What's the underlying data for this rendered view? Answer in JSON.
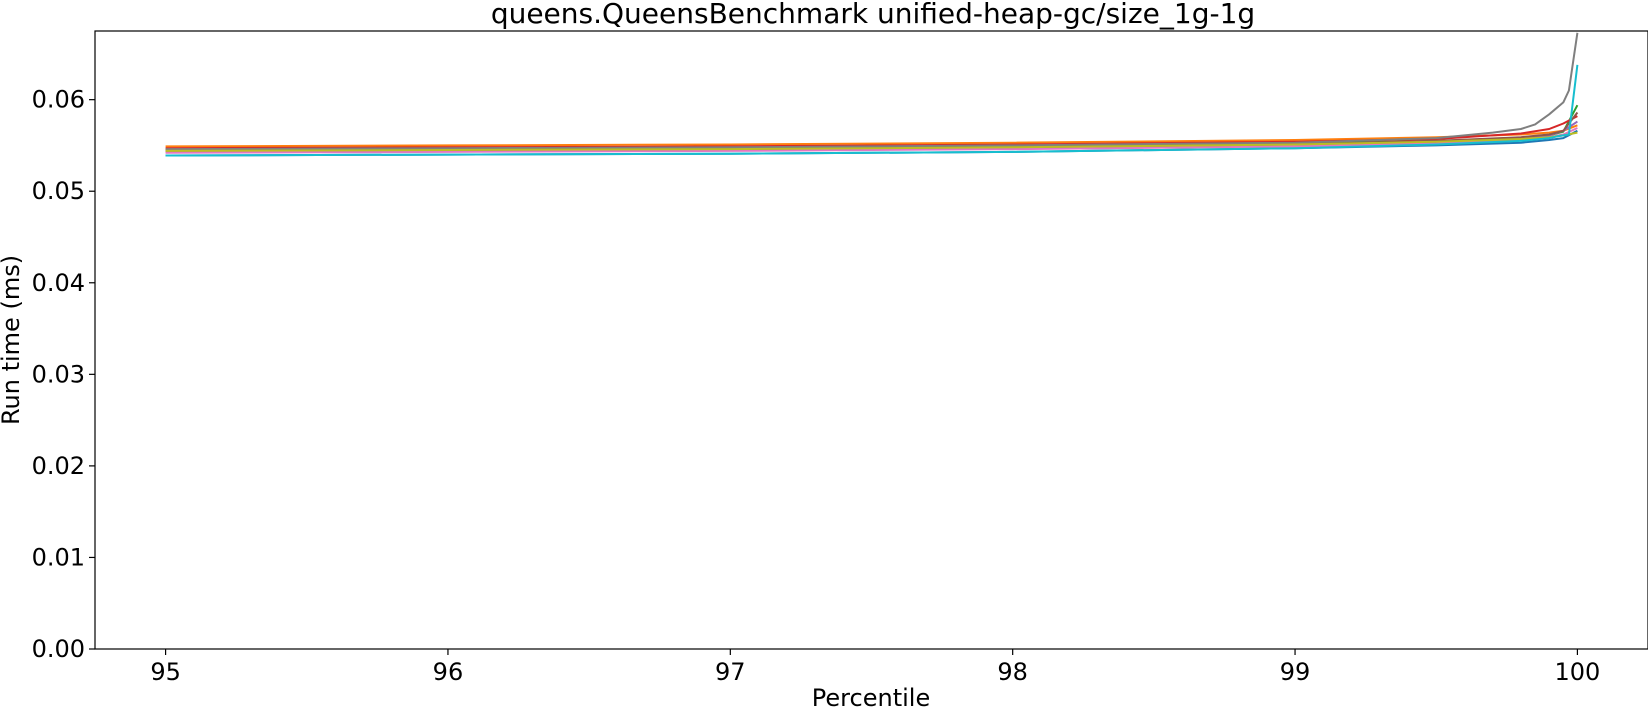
{
  "chart_data": {
    "type": "line",
    "title": "queens.QueensBenchmark unified-heap-gc/size_1g-1g",
    "xlabel": "Percentile",
    "ylabel": "Run time (ms)",
    "xlim": [
      94.75,
      100.25
    ],
    "ylim": [
      0.0,
      0.0675
    ],
    "xticks": [
      95,
      96,
      97,
      98,
      99,
      100
    ],
    "xtick_labels": [
      "95",
      "96",
      "97",
      "98",
      "99",
      "100"
    ],
    "yticks": [
      0.0,
      0.01,
      0.02,
      0.03,
      0.04,
      0.05,
      0.06
    ],
    "ytick_labels": [
      "0.00",
      "0.01",
      "0.02",
      "0.03",
      "0.04",
      "0.05",
      "0.06"
    ],
    "grid": false,
    "legend": "none",
    "series": [
      {
        "color": "#1f77b4",
        "x": [
          95,
          96,
          97,
          98,
          99,
          99.5,
          99.8,
          99.9,
          99.95,
          100
        ],
        "y": [
          0.0539,
          0.054,
          0.0541,
          0.0543,
          0.0547,
          0.055,
          0.0553,
          0.0556,
          0.0558,
          0.0566
        ]
      },
      {
        "color": "#ff7f0e",
        "x": [
          95,
          96,
          97,
          98,
          99,
          99.5,
          99.8,
          99.9,
          99.95,
          100
        ],
        "y": [
          0.0549,
          0.055,
          0.0551,
          0.0553,
          0.0556,
          0.0559,
          0.0562,
          0.0564,
          0.0566,
          0.0572
        ]
      },
      {
        "color": "#2ca02c",
        "x": [
          95,
          96,
          97,
          98,
          99,
          99.5,
          99.8,
          99.9,
          99.95,
          100
        ],
        "y": [
          0.0545,
          0.0546,
          0.0547,
          0.0549,
          0.0552,
          0.0555,
          0.0558,
          0.0561,
          0.0565,
          0.0594
        ]
      },
      {
        "color": "#d62728",
        "x": [
          95,
          96,
          97,
          98,
          99,
          99.5,
          99.8,
          99.9,
          99.95,
          100
        ],
        "y": [
          0.0547,
          0.0548,
          0.0549,
          0.0551,
          0.0554,
          0.0557,
          0.0563,
          0.0568,
          0.0574,
          0.0582
        ]
      },
      {
        "color": "#9467bd",
        "x": [
          95,
          96,
          97,
          98,
          99,
          99.5,
          99.8,
          99.9,
          99.95,
          100
        ],
        "y": [
          0.0543,
          0.0544,
          0.0545,
          0.0547,
          0.055,
          0.0553,
          0.0557,
          0.0561,
          0.0566,
          0.0576
        ]
      },
      {
        "color": "#8c564b",
        "x": [
          95,
          96,
          97,
          98,
          99,
          99.5,
          99.8,
          99.9,
          99.95,
          100
        ],
        "y": [
          0.0544,
          0.0545,
          0.0546,
          0.0548,
          0.0551,
          0.0555,
          0.0559,
          0.0562,
          0.0566,
          0.0586
        ]
      },
      {
        "color": "#e377c2",
        "x": [
          95,
          96,
          97,
          98,
          99,
          99.5,
          99.8,
          99.9,
          99.95,
          100
        ],
        "y": [
          0.0542,
          0.0543,
          0.0544,
          0.0546,
          0.0549,
          0.0552,
          0.0556,
          0.0559,
          0.0562,
          0.0569
        ]
      },
      {
        "color": "#7f7f7f",
        "x": [
          95,
          96,
          97,
          98,
          99,
          99.5,
          99.7,
          99.8,
          99.85,
          99.9,
          99.95,
          99.97,
          100
        ],
        "y": [
          0.0546,
          0.0547,
          0.0548,
          0.055,
          0.0553,
          0.0558,
          0.0564,
          0.0568,
          0.0573,
          0.0584,
          0.0597,
          0.061,
          0.0673
        ]
      },
      {
        "color": "#bcbd22",
        "x": [
          95,
          96,
          97,
          98,
          99,
          99.5,
          99.8,
          99.9,
          99.95,
          100
        ],
        "y": [
          0.0544,
          0.0545,
          0.0546,
          0.0548,
          0.0551,
          0.0554,
          0.0557,
          0.0559,
          0.0561,
          0.0564
        ]
      },
      {
        "color": "#17becf",
        "x": [
          95,
          96,
          97,
          98,
          99,
          99.5,
          99.8,
          99.9,
          99.93,
          99.97,
          100
        ],
        "y": [
          0.0539,
          0.054,
          0.0541,
          0.0543,
          0.0547,
          0.0551,
          0.0555,
          0.0558,
          0.056,
          0.0562,
          0.0638
        ]
      }
    ]
  }
}
